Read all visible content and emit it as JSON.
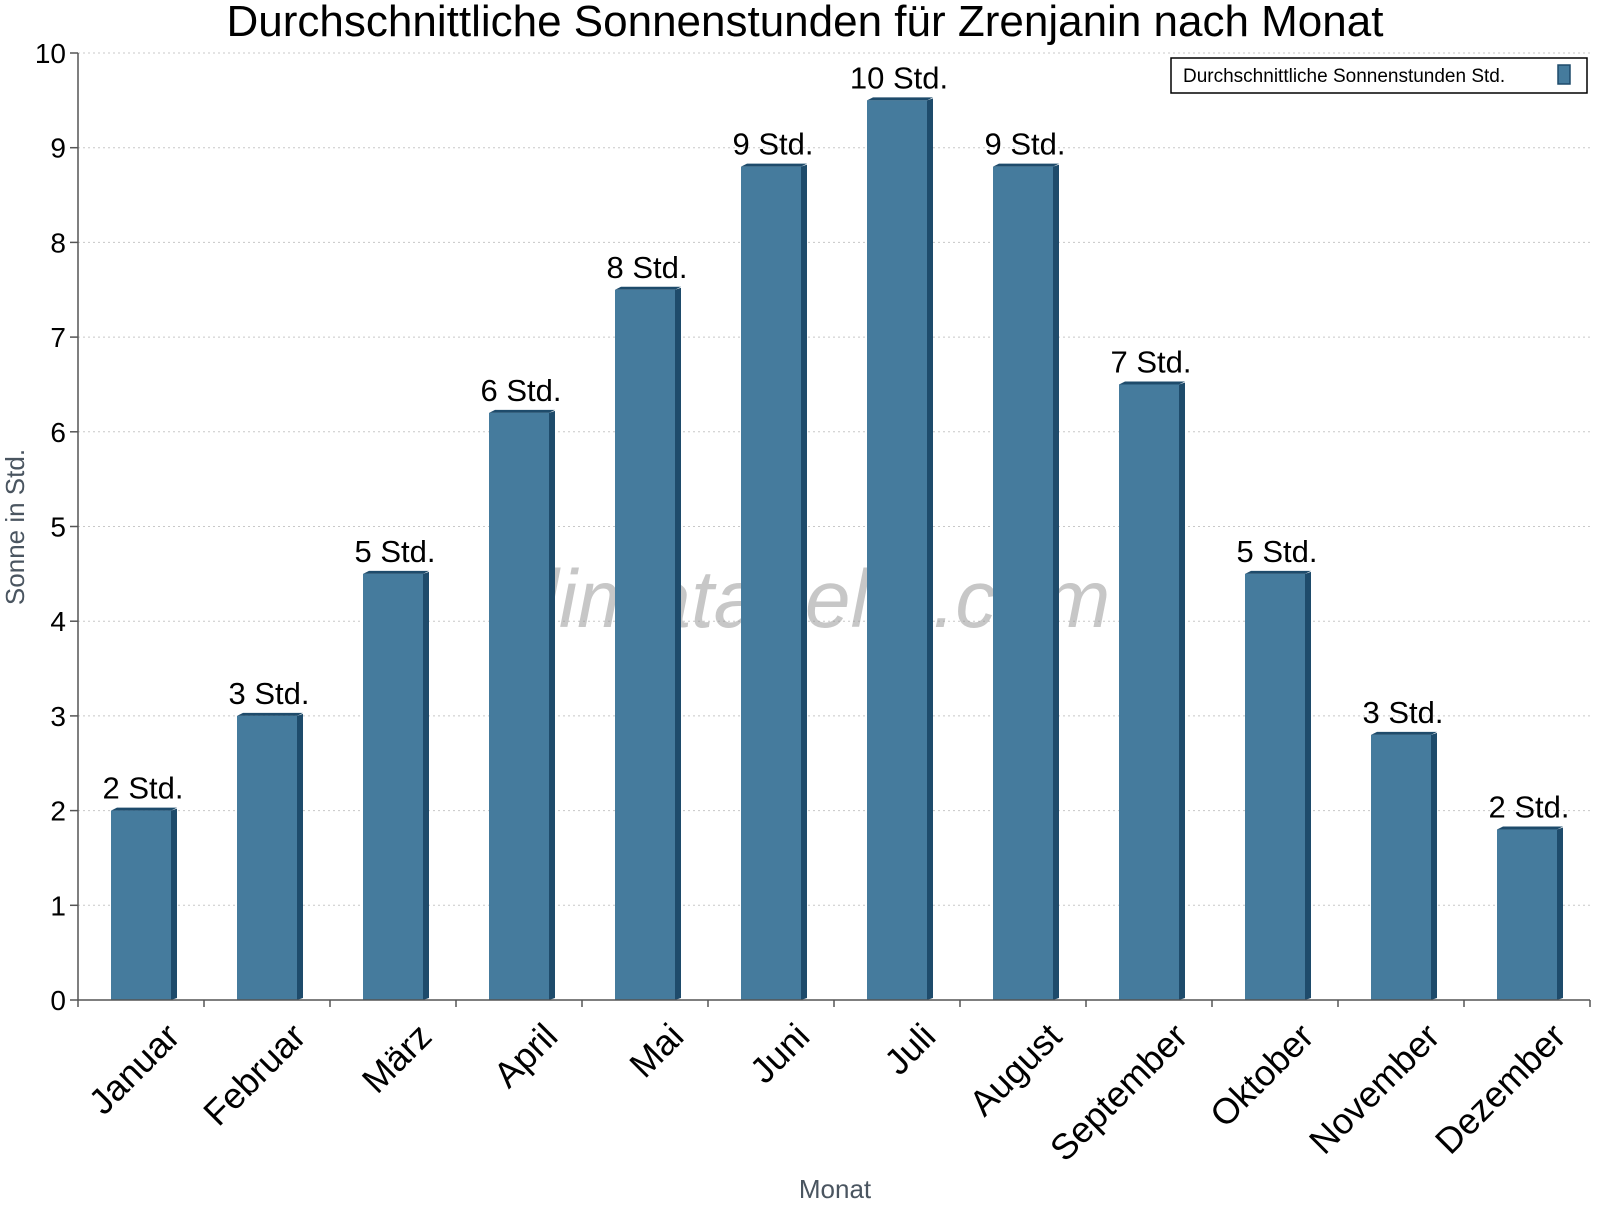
{
  "chart_data": {
    "type": "bar",
    "title": "Durchschnittliche Sonnenstunden für Zrenjanin nach Monat",
    "xlabel": "Monat",
    "ylabel": "Sonne in Std.",
    "ylim": [
      0,
      10
    ],
    "yticks": [
      "0",
      "1",
      "2",
      "3",
      "4",
      "5",
      "6",
      "7",
      "8",
      "9",
      "10"
    ],
    "grid": true,
    "legend_position": "top-right",
    "categories": [
      "Januar",
      "Februar",
      "März",
      "April",
      "Mai",
      "Juni",
      "Juli",
      "August",
      "September",
      "Oktober",
      "November",
      "Dezember"
    ],
    "series": [
      {
        "name": "Durchschnittliche Sonnenstunden Std.",
        "values": [
          2.0,
          3.0,
          4.5,
          6.2,
          7.5,
          8.8,
          9.5,
          8.8,
          6.5,
          4.5,
          2.8,
          1.8
        ],
        "labels": [
          "2 Std.",
          "3 Std.",
          "5 Std.",
          "6 Std.",
          "8 Std.",
          "9 Std.",
          "10 Std.",
          "9 Std.",
          "7 Std.",
          "5 Std.",
          "3 Std.",
          "2 Std."
        ],
        "color": "#457b9d"
      }
    ],
    "colors": {
      "bar": "#457b9d",
      "bar_edge": "#1e4b6b",
      "grid": "#c8c8c8",
      "axis": "#555555"
    },
    "watermark": "klimatabelle.com"
  }
}
